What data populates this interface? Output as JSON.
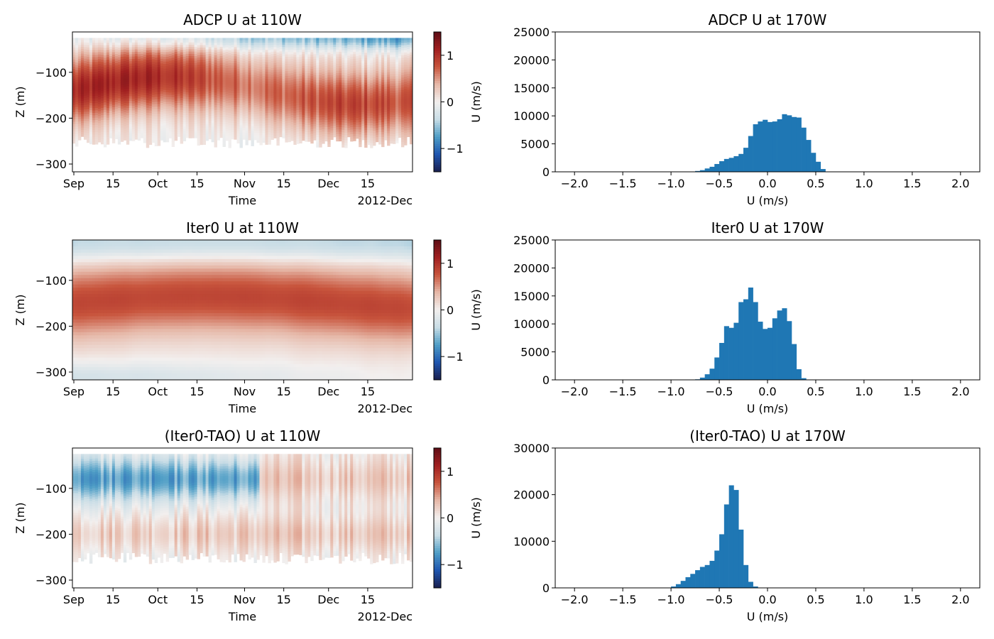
{
  "figure": {
    "colorbar_label": "U (m/s)",
    "colorbar_ticks": [
      -1,
      0,
      1
    ],
    "colorbar_range": [
      -1.5,
      1.5
    ],
    "colormap": [
      "#1a1f4e",
      "#1f56b0",
      "#4f9ec6",
      "#c9dde6",
      "#f2efee",
      "#e6b8a8",
      "#c8553d",
      "#a01f20",
      "#5e0e16"
    ],
    "bar_color": "#1f77b4"
  },
  "chart_data": [
    {
      "type": "heatmap",
      "title": "ADCP U at 110W",
      "xlabel": "Time",
      "ylabel": "Z (m)",
      "x_ticks": [
        "Sep",
        "15",
        "Oct",
        "15",
        "Nov",
        "15",
        "Dec",
        "15"
      ],
      "x_offset_label": "2012-Dec",
      "y_ticks": [
        -100,
        -200,
        -300
      ],
      "ylim": [
        -317,
        -12
      ],
      "data_depth_range": [
        -240,
        -25
      ],
      "pattern": "adcp"
    },
    {
      "type": "bar",
      "title": "ADCP U at 170W",
      "xlabel": "U (m/s)",
      "ylabel": "",
      "xlim": [
        -2.2,
        2.2
      ],
      "ylim": [
        0,
        25000
      ],
      "x_ticks": [
        -2.0,
        -1.5,
        -1.0,
        -0.5,
        0.0,
        0.5,
        1.0,
        1.5,
        2.0
      ],
      "x_tick_labels": [
        "−2.0",
        "−1.5",
        "−1.0",
        "−0.5",
        "0.0",
        "0.5",
        "1.0",
        "1.5",
        "2.0"
      ],
      "y_ticks": [
        0,
        5000,
        10000,
        15000,
        20000,
        25000
      ],
      "bin_start": -0.75,
      "bin_width": 0.05,
      "values": [
        150,
        300,
        600,
        900,
        1400,
        1900,
        2300,
        2500,
        2800,
        3200,
        4300,
        6400,
        8500,
        9000,
        9300,
        8900,
        9000,
        9400,
        10300,
        10100,
        9800,
        9700,
        7900,
        5700,
        3400,
        1800,
        500
      ]
    },
    {
      "type": "heatmap",
      "title": "Iter0 U at 110W",
      "xlabel": "Time",
      "ylabel": "Z (m)",
      "x_ticks": [
        "Sep",
        "15",
        "Oct",
        "15",
        "Nov",
        "15",
        "Dec",
        "15"
      ],
      "x_offset_label": "2012-Dec",
      "y_ticks": [
        -100,
        -200,
        -300
      ],
      "ylim": [
        -317,
        -12
      ],
      "data_depth_range": [
        -317,
        -12
      ],
      "pattern": "model"
    },
    {
      "type": "bar",
      "title": "Iter0 U at 170W",
      "xlabel": "U (m/s)",
      "ylabel": "",
      "xlim": [
        -2.2,
        2.2
      ],
      "ylim": [
        0,
        25000
      ],
      "x_ticks": [
        -2.0,
        -1.5,
        -1.0,
        -0.5,
        0.0,
        0.5,
        1.0,
        1.5,
        2.0
      ],
      "x_tick_labels": [
        "−2.0",
        "−1.5",
        "−1.0",
        "−0.5",
        "0.0",
        "0.5",
        "1.0",
        "1.5",
        "2.0"
      ],
      "y_ticks": [
        0,
        5000,
        10000,
        15000,
        20000,
        25000
      ],
      "bin_start": -0.75,
      "bin_width": 0.05,
      "values": [
        100,
        400,
        1000,
        2000,
        4000,
        6600,
        9600,
        9300,
        10200,
        13900,
        14400,
        16500,
        13900,
        10400,
        9100,
        9300,
        11000,
        12400,
        12800,
        10500,
        6400,
        1900,
        300
      ]
    },
    {
      "type": "heatmap",
      "title": "(Iter0-TAO) U at 110W",
      "xlabel": "Time",
      "ylabel": "Z (m)",
      "x_ticks": [
        "Sep",
        "15",
        "Oct",
        "15",
        "Nov",
        "15",
        "Dec",
        "15"
      ],
      "x_offset_label": "2012-Dec",
      "y_ticks": [
        -100,
        -200,
        -300
      ],
      "ylim": [
        -317,
        -12
      ],
      "data_depth_range": [
        -240,
        -25
      ],
      "pattern": "diff"
    },
    {
      "type": "bar",
      "title": "(Iter0-TAO) U at 170W",
      "xlabel": "U (m/s)",
      "ylabel": "",
      "xlim": [
        -2.2,
        2.2
      ],
      "ylim": [
        0,
        30000
      ],
      "x_ticks": [
        -2.0,
        -1.5,
        -1.0,
        -0.5,
        0.0,
        0.5,
        1.0,
        1.5,
        2.0
      ],
      "x_tick_labels": [
        "−2.0",
        "−1.5",
        "−1.0",
        "−0.5",
        "0.0",
        "0.5",
        "1.0",
        "1.5",
        "2.0"
      ],
      "y_ticks": [
        0,
        10000,
        20000,
        30000
      ],
      "bin_start": -1.0,
      "bin_width": 0.05,
      "values": [
        300,
        800,
        1500,
        2300,
        3000,
        3800,
        4500,
        4900,
        5800,
        8000,
        11500,
        17900,
        22000,
        21000,
        12500,
        4900,
        1300,
        300
      ]
    }
  ]
}
